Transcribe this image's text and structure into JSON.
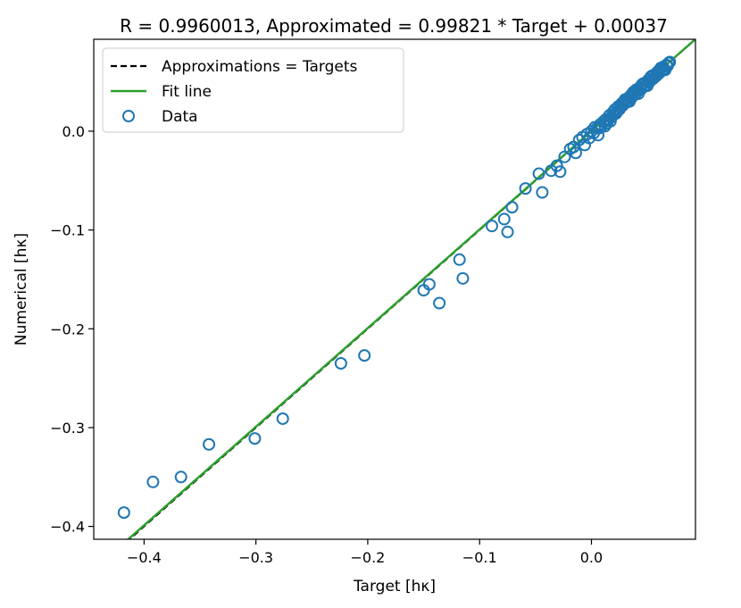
{
  "chart_data": {
    "type": "scatter",
    "title": "R = 0.9960013, Approximated = 0.99821 * Target + 0.00037",
    "xlabel": "Target [hκ]",
    "ylabel": "Numerical [hκ]",
    "xlim": [
      -0.445,
      0.093
    ],
    "ylim": [
      -0.413,
      0.093
    ],
    "x_ticks": [
      -0.4,
      -0.3,
      -0.2,
      -0.1,
      0.0
    ],
    "x_tick_labels": [
      "−0.4",
      "−0.3",
      "−0.2",
      "−0.1",
      "0.0"
    ],
    "y_ticks": [
      -0.4,
      -0.3,
      -0.2,
      -0.1,
      0.0
    ],
    "y_tick_labels": [
      "−0.4",
      "−0.3",
      "−0.2",
      "−0.1",
      "0.0"
    ],
    "grid": false,
    "legend_position": "top-left",
    "legend": [
      {
        "label": "Approximations = Targets",
        "kind": "dashed-line",
        "color": "#000000"
      },
      {
        "label": "Fit line",
        "kind": "line",
        "color": "#2ca02c"
      },
      {
        "label": "Data",
        "kind": "open-circle",
        "color": "#1f77b4"
      }
    ],
    "reference_line": {
      "slope": 1.0,
      "intercept": 0.0,
      "color": "#000000",
      "style": "dashed"
    },
    "fit_line": {
      "slope": 0.99821,
      "intercept": 0.00037,
      "color": "#2ca02c"
    },
    "series": [
      {
        "name": "Data",
        "color": "#1f77b4",
        "points": [
          [
            -0.418,
            -0.386
          ],
          [
            -0.392,
            -0.355
          ],
          [
            -0.367,
            -0.35
          ],
          [
            -0.342,
            -0.317
          ],
          [
            -0.301,
            -0.311
          ],
          [
            -0.276,
            -0.291
          ],
          [
            -0.224,
            -0.235
          ],
          [
            -0.203,
            -0.227
          ],
          [
            -0.15,
            -0.161
          ],
          [
            -0.145,
            -0.155
          ],
          [
            -0.136,
            -0.174
          ],
          [
            -0.118,
            -0.13
          ],
          [
            -0.115,
            -0.149
          ],
          [
            -0.089,
            -0.096
          ],
          [
            -0.078,
            -0.089
          ],
          [
            -0.075,
            -0.102
          ],
          [
            -0.071,
            -0.077
          ],
          [
            -0.059,
            -0.058
          ],
          [
            -0.047,
            -0.043
          ],
          [
            -0.044,
            -0.062
          ],
          [
            -0.036,
            -0.04
          ],
          [
            -0.031,
            -0.035
          ],
          [
            -0.028,
            -0.041
          ],
          [
            -0.024,
            -0.026
          ],
          [
            -0.019,
            -0.018
          ],
          [
            -0.016,
            -0.016
          ],
          [
            -0.014,
            -0.022
          ],
          [
            -0.011,
            -0.009
          ],
          [
            -0.008,
            -0.006
          ],
          [
            -0.006,
            -0.014
          ],
          [
            -0.004,
            -0.003
          ],
          [
            -0.002,
            -0.007
          ],
          [
            0.0,
            0.0
          ],
          [
            0.002,
            -0.002
          ],
          [
            0.003,
            0.004
          ],
          [
            0.005,
            0.003
          ],
          [
            0.006,
            -0.004
          ],
          [
            0.008,
            0.007
          ],
          [
            0.009,
            0.005
          ],
          [
            0.011,
            0.01
          ],
          [
            0.012,
            0.005
          ],
          [
            0.013,
            0.012
          ],
          [
            0.015,
            0.012
          ],
          [
            0.016,
            0.016
          ],
          [
            0.017,
            0.01
          ],
          [
            0.019,
            0.019
          ],
          [
            0.02,
            0.017
          ],
          [
            0.021,
            0.022
          ],
          [
            0.023,
            0.02
          ],
          [
            0.024,
            0.025
          ],
          [
            0.025,
            0.022
          ],
          [
            0.027,
            0.028
          ],
          [
            0.028,
            0.026
          ],
          [
            0.029,
            0.03
          ],
          [
            0.031,
            0.029
          ],
          [
            0.032,
            0.033
          ],
          [
            0.033,
            0.031
          ],
          [
            0.035,
            0.036
          ],
          [
            0.036,
            0.034
          ],
          [
            0.037,
            0.039
          ],
          [
            0.039,
            0.037
          ],
          [
            0.04,
            0.042
          ],
          [
            0.041,
            0.04
          ],
          [
            0.043,
            0.044
          ],
          [
            0.044,
            0.042
          ],
          [
            0.045,
            0.047
          ],
          [
            0.047,
            0.045
          ],
          [
            0.048,
            0.049
          ],
          [
            0.049,
            0.047
          ],
          [
            0.051,
            0.052
          ],
          [
            0.052,
            0.05
          ],
          [
            0.053,
            0.055
          ],
          [
            0.055,
            0.053
          ],
          [
            0.056,
            0.057
          ],
          [
            0.057,
            0.055
          ],
          [
            0.059,
            0.06
          ],
          [
            0.06,
            0.058
          ],
          [
            0.061,
            0.062
          ],
          [
            0.063,
            0.061
          ],
          [
            0.064,
            0.065
          ],
          [
            0.065,
            0.063
          ],
          [
            0.067,
            0.067
          ],
          [
            0.068,
            0.066
          ],
          [
            0.069,
            0.069
          ],
          [
            0.07,
            0.07
          ],
          [
            0.066,
            0.062
          ],
          [
            0.058,
            0.056
          ],
          [
            0.05,
            0.046
          ],
          [
            0.042,
            0.038
          ],
          [
            0.034,
            0.03
          ],
          [
            0.026,
            0.024
          ],
          [
            0.018,
            0.014
          ],
          [
            0.014,
            0.008
          ],
          [
            0.022,
            0.018
          ],
          [
            0.03,
            0.032
          ],
          [
            0.038,
            0.04
          ],
          [
            0.046,
            0.048
          ],
          [
            0.054,
            0.056
          ],
          [
            0.062,
            0.064
          ],
          [
            0.007,
            0.003
          ]
        ]
      }
    ]
  }
}
